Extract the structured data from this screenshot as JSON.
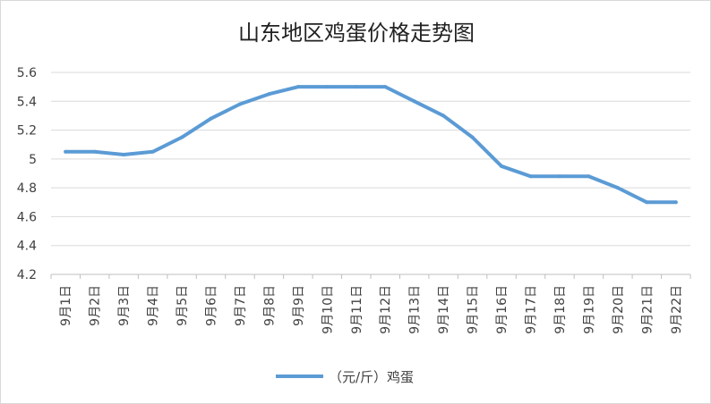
{
  "chart_data": {
    "type": "line",
    "title": "山东地区鸡蛋价格走势图",
    "xlabel": "",
    "ylabel": "",
    "categories": [
      "9月1日",
      "9月2日",
      "9月3日",
      "9月4日",
      "9月5日",
      "9月6日",
      "9月7日",
      "9月8日",
      "9月9日",
      "9月10日",
      "9月11日",
      "9月12日",
      "9月13日",
      "9月14日",
      "9月15日",
      "9月16日",
      "9月17日",
      "9月18日",
      "9月19日",
      "9月20日",
      "9月21日",
      "9月22日"
    ],
    "series": [
      {
        "name": "（元/斤）鸡蛋",
        "color": "#5b9bd5",
        "values": [
          5.05,
          5.05,
          5.03,
          5.05,
          5.15,
          5.28,
          5.38,
          5.45,
          5.5,
          5.5,
          5.5,
          5.5,
          5.4,
          5.3,
          5.15,
          4.95,
          4.88,
          4.88,
          4.88,
          4.8,
          4.7,
          4.7
        ]
      }
    ],
    "ylim": [
      4.2,
      5.6
    ],
    "yticks": [
      4.2,
      4.4,
      4.6,
      4.8,
      5.0,
      5.2,
      5.4,
      5.6
    ],
    "ytick_labels": [
      "4.2",
      "4.4",
      "4.6",
      "4.8",
      "5",
      "5.2",
      "5.4",
      "5.6"
    ],
    "grid": true,
    "legend_position": "bottom"
  }
}
